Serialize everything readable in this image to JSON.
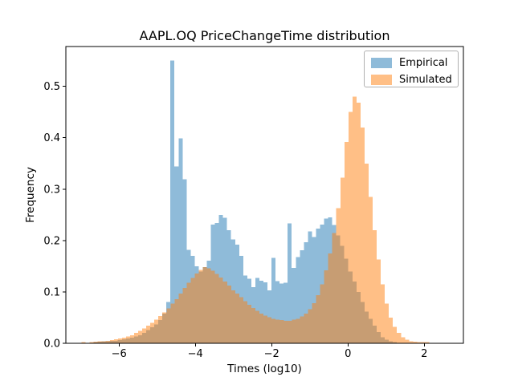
{
  "chart_data": {
    "type": "histogram",
    "title": "AAPL.OQ PriceChangeTime distribution",
    "xlabel": "Times (log10)",
    "ylabel": "Frequency",
    "xlim": [
      -7.39,
      3.03
    ],
    "ylim": [
      0,
      0.5775
    ],
    "xticks": [
      -6,
      -4,
      -2,
      0,
      2
    ],
    "xtick_labels": [
      "−6",
      "−4",
      "−2",
      "0",
      "2"
    ],
    "yticks": [
      0.0,
      0.1,
      0.2,
      0.3,
      0.4,
      0.5
    ],
    "ytick_labels": [
      "0.0",
      "0.1",
      "0.2",
      "0.3",
      "0.4",
      "0.5"
    ],
    "grid": false,
    "bar_opacity": 0.5,
    "legend": {
      "position": "upper right",
      "entries": [
        {
          "label": "Empirical",
          "color": "#1f77b4"
        },
        {
          "label": "Simulated",
          "color": "#ff7f0e"
        }
      ]
    },
    "series": [
      {
        "name": "Empirical",
        "color": "#1f77b4",
        "bin_start": -6.88,
        "bin_width": 0.106,
        "heights": [
          0.001,
          0.001,
          0.002,
          0.003,
          0.004,
          0.004,
          0.005,
          0.005,
          0.006,
          0.008,
          0.009,
          0.011,
          0.013,
          0.016,
          0.02,
          0.026,
          0.031,
          0.037,
          0.045,
          0.058,
          0.08,
          0.55,
          0.344,
          0.399,
          0.319,
          0.182,
          0.17,
          0.15,
          0.14,
          0.148,
          0.161,
          0.231,
          0.234,
          0.25,
          0.244,
          0.22,
          0.202,
          0.192,
          0.17,
          0.132,
          0.126,
          0.109,
          0.127,
          0.122,
          0.119,
          0.103,
          0.166,
          0.121,
          0.116,
          0.118,
          0.233,
          0.147,
          0.168,
          0.181,
          0.197,
          0.218,
          0.207,
          0.223,
          0.231,
          0.243,
          0.245,
          0.23,
          0.21,
          0.19,
          0.165,
          0.14,
          0.12,
          0.1,
          0.08,
          0.062,
          0.048,
          0.034,
          0.022,
          0.012,
          0.007,
          0.004,
          0.002
        ]
      },
      {
        "name": "Simulated",
        "color": "#ff7f0e",
        "bin_start": -7.09,
        "bin_width": 0.106,
        "heights": [
          0.001,
          0.002,
          0.001,
          0.002,
          0.003,
          0.004,
          0.004,
          0.005,
          0.006,
          0.008,
          0.009,
          0.011,
          0.013,
          0.016,
          0.02,
          0.024,
          0.029,
          0.034,
          0.04,
          0.046,
          0.053,
          0.06,
          0.068,
          0.077,
          0.086,
          0.097,
          0.108,
          0.118,
          0.127,
          0.136,
          0.143,
          0.148,
          0.146,
          0.141,
          0.135,
          0.128,
          0.12,
          0.112,
          0.103,
          0.097,
          0.09,
          0.082,
          0.075,
          0.069,
          0.063,
          0.058,
          0.054,
          0.051,
          0.048,
          0.046,
          0.045,
          0.044,
          0.044,
          0.046,
          0.048,
          0.052,
          0.058,
          0.066,
          0.078,
          0.094,
          0.115,
          0.142,
          0.175,
          0.215,
          0.263,
          0.322,
          0.392,
          0.45,
          0.48,
          0.468,
          0.42,
          0.35,
          0.285,
          0.22,
          0.163,
          0.115,
          0.077,
          0.05,
          0.032,
          0.02,
          0.012,
          0.007,
          0.004,
          0.003,
          0.002,
          0.002,
          0.002,
          0.001,
          0.001,
          0.001,
          0.001
        ]
      }
    ]
  }
}
